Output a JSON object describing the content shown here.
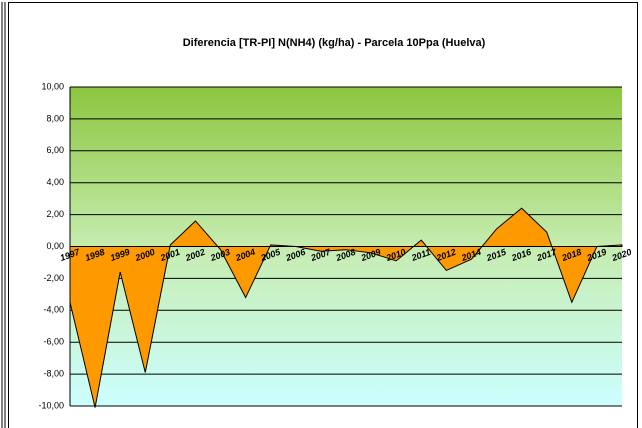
{
  "chart_data": {
    "type": "area",
    "title": "Diferencia [TR-PI] N(NH4) (kg/ha) - Parcela 10Ppa (Huelva)",
    "categories": [
      "1997",
      "1998",
      "1999",
      "2000",
      "2001",
      "2002",
      "2003",
      "2004",
      "2005",
      "2006",
      "2007",
      "2008",
      "2009",
      "2010",
      "2011",
      "2012",
      "2014",
      "2015",
      "2016",
      "2017",
      "2018",
      "2019",
      "2020"
    ],
    "values": [
      -3.5,
      -10.1,
      -1.6,
      -7.9,
      0.1,
      1.6,
      -0.2,
      -3.2,
      0.1,
      0.0,
      -0.3,
      -0.2,
      -0.4,
      -0.9,
      0.4,
      -1.5,
      -0.8,
      1.1,
      2.4,
      0.9,
      -3.5,
      0.0,
      0.1
    ],
    "color": "#ff9900",
    "ylim": [
      -10,
      10
    ],
    "yticks": [
      {
        "value": -10,
        "label": "-10,00"
      },
      {
        "value": -8,
        "label": "-8,00"
      },
      {
        "value": -6,
        "label": "-6,00"
      },
      {
        "value": -4,
        "label": "-4,00"
      },
      {
        "value": -2,
        "label": "-2,00"
      },
      {
        "value": 0,
        "label": "0,00"
      },
      {
        "value": 2,
        "label": "2,00"
      },
      {
        "value": 4,
        "label": "4,00"
      },
      {
        "value": 6,
        "label": "6,00"
      },
      {
        "value": 8,
        "label": "8,00"
      },
      {
        "value": 10,
        "label": "10,00"
      }
    ],
    "grid": true
  }
}
